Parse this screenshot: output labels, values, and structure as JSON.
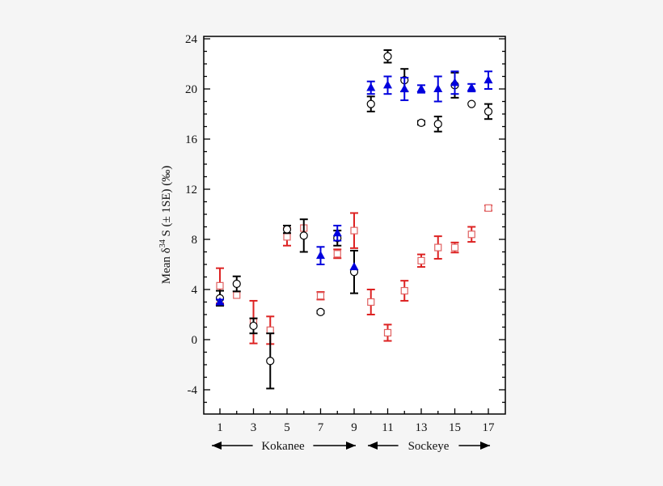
{
  "chart_data": {
    "type": "scatter",
    "title": "",
    "xlabel": "",
    "ylabel": "Mean δ³⁴S (± 1SE) (‰)",
    "ylabel_parts": {
      "pre": "Mean δ",
      "sup": "34",
      "post": " S (± 1SE) (‰)"
    },
    "xlim": [
      0.1,
      18.1
    ],
    "ylim": [
      -6,
      24.2
    ],
    "x_ticks": [
      1,
      3,
      5,
      7,
      9,
      11,
      13,
      15,
      17
    ],
    "y_ticks": [
      -4,
      0,
      4,
      8,
      12,
      16,
      20,
      24
    ],
    "grid": false,
    "groups": [
      {
        "label": "Kokanee",
        "from": 1,
        "to": 9
      },
      {
        "label": "Sockeye",
        "from": 10,
        "to": 17
      }
    ],
    "series": [
      {
        "marker": "circle",
        "color": "#000000",
        "x": [
          1,
          2,
          3,
          4,
          5,
          6,
          7,
          8,
          9,
          10,
          11,
          12,
          13,
          14,
          15,
          16,
          17
        ],
        "y": [
          3.3,
          4.45,
          1.1,
          -1.7,
          8.8,
          8.3,
          2.2,
          8.1,
          5.4,
          18.8,
          22.6,
          20.7,
          17.3,
          17.2,
          20.3,
          18.8,
          18.2
        ],
        "err": [
          0.6,
          0.6,
          0.6,
          2.2,
          0.3,
          1.3,
          0.1,
          0.6,
          1.7,
          0.6,
          0.5,
          0.9,
          0.15,
          0.6,
          1.0,
          0,
          0.6
        ]
      },
      {
        "marker": "triangle",
        "color": "#0000dd",
        "x": [
          1,
          7,
          8,
          9,
          10,
          11,
          12,
          13,
          14,
          15,
          16,
          17
        ],
        "y": [
          3.0,
          6.7,
          8.5,
          5.8,
          20.1,
          20.3,
          20.0,
          20.0,
          20.0,
          20.5,
          20.1,
          20.7
        ],
        "err": [
          0.2,
          0.7,
          0.6,
          0,
          0.5,
          0.7,
          0.9,
          0.3,
          1.0,
          0.9,
          0.3,
          0.7
        ]
      },
      {
        "marker": "square",
        "color": "#dd2222",
        "x": [
          1,
          2,
          3,
          4,
          5,
          6,
          7,
          8,
          9,
          10,
          11,
          12,
          13,
          14,
          15,
          16,
          17
        ],
        "y": [
          4.3,
          3.55,
          1.4,
          0.75,
          8.2,
          8.9,
          3.5,
          6.85,
          8.7,
          3.0,
          0.55,
          3.9,
          6.3,
          7.35,
          7.35,
          8.4,
          10.5
        ],
        "err": [
          1.4,
          0,
          1.7,
          1.1,
          0.7,
          0,
          0.3,
          0.35,
          1.4,
          1.0,
          0.65,
          0.8,
          0.5,
          0.9,
          0.4,
          0.6,
          0.2
        ]
      }
    ]
  }
}
